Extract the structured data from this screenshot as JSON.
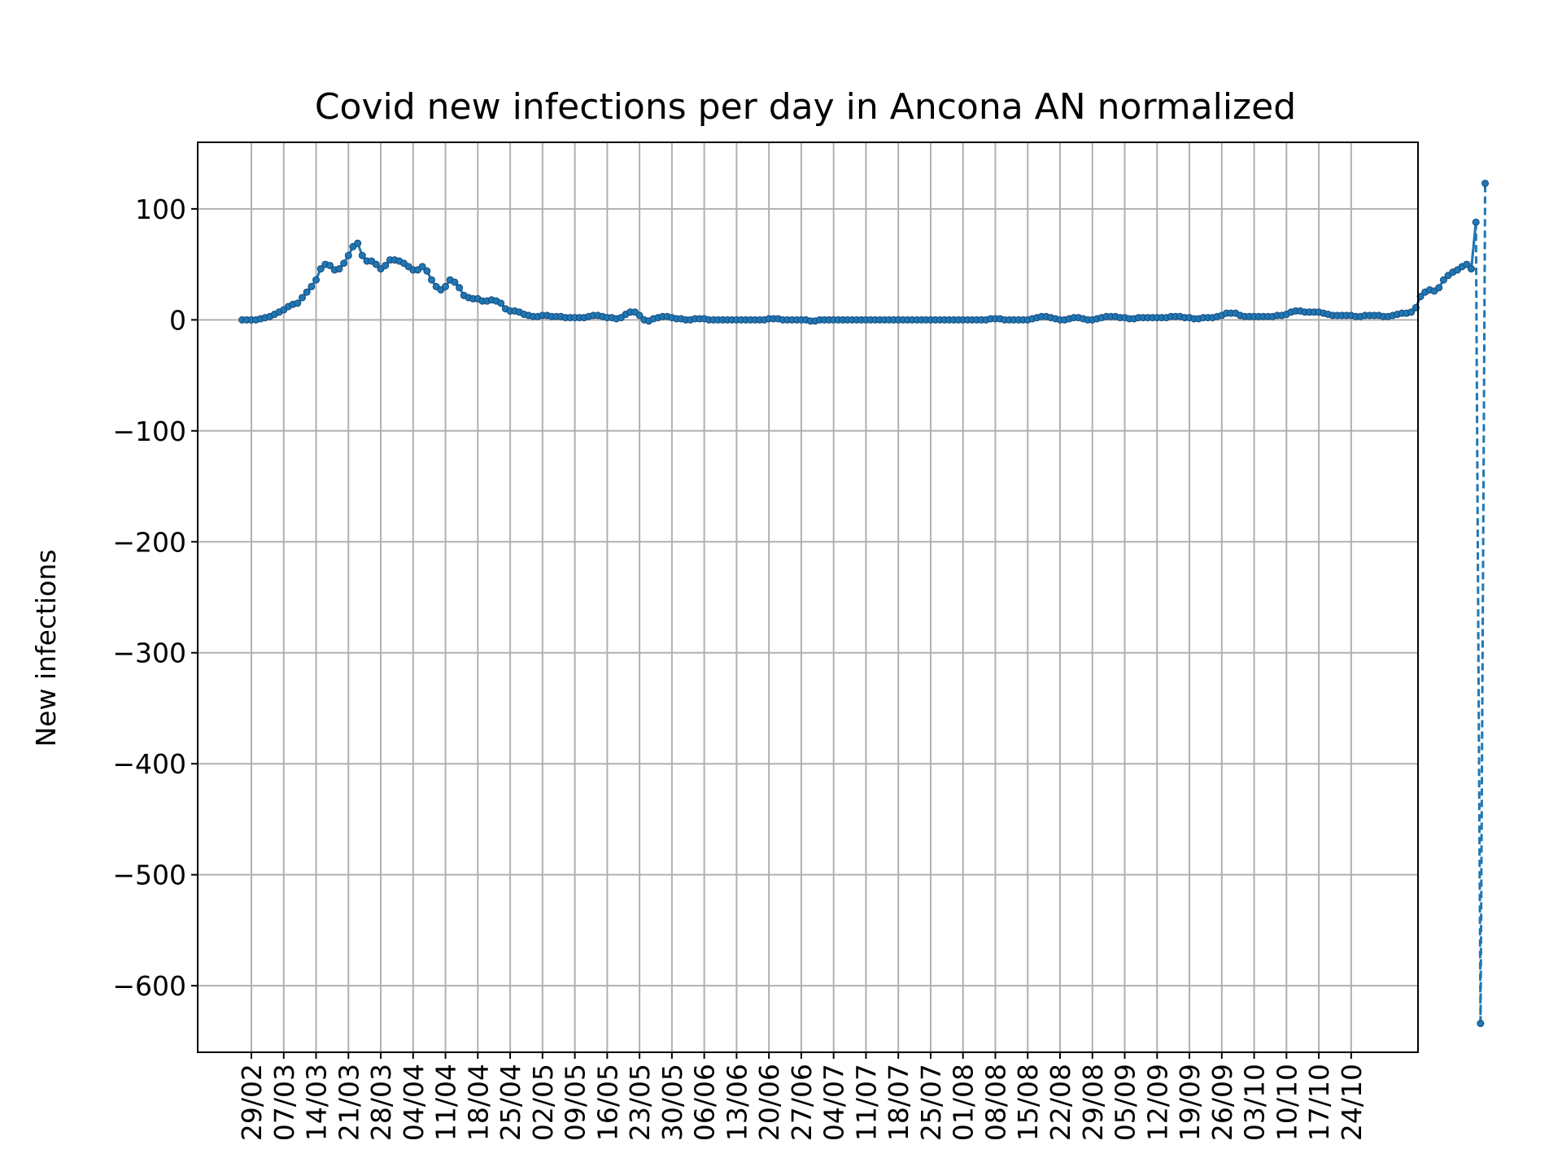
{
  "chart_data": {
    "type": "line",
    "title": "Covid new infections per day in Ancona AN normalized",
    "xlabel": "",
    "ylabel": "New infections",
    "ylim": [
      -660,
      160
    ],
    "yticks": [
      100,
      0,
      -100,
      -200,
      -300,
      -400,
      -500,
      -600
    ],
    "ytick_labels": [
      "100",
      "0",
      "−100",
      "−200",
      "−300",
      "−400",
      "−500",
      "−600"
    ],
    "xticks": [
      "29/02",
      "07/03",
      "14/03",
      "21/03",
      "28/03",
      "04/04",
      "11/04",
      "18/04",
      "25/04",
      "02/05",
      "09/05",
      "16/05",
      "23/05",
      "30/05",
      "06/06",
      "13/06",
      "20/06",
      "27/06",
      "04/07",
      "11/07",
      "18/07",
      "25/07",
      "01/08",
      "08/08",
      "15/08",
      "22/08",
      "29/08",
      "05/09",
      "12/09",
      "19/09",
      "26/09",
      "03/10",
      "10/10",
      "17/10",
      "24/10"
    ],
    "x_start": "27/02",
    "grid": true,
    "color": "#1f77b4",
    "solid_series": [
      0,
      0,
      0,
      0,
      1,
      2,
      3,
      5,
      7,
      9,
      12,
      14,
      15,
      20,
      25,
      30,
      36,
      46,
      50,
      49,
      45,
      46,
      51,
      58,
      66,
      69,
      58,
      53,
      53,
      50,
      46,
      49,
      54,
      54,
      53,
      51,
      48,
      45,
      45,
      48,
      44,
      36,
      30,
      27,
      30,
      36,
      34,
      29,
      22,
      20,
      19,
      19,
      17,
      17,
      18,
      17,
      15,
      10,
      8,
      8,
      7,
      5,
      4,
      3,
      3,
      4,
      4,
      3,
      3,
      3,
      2,
      2,
      2,
      2,
      2,
      3,
      4,
      4,
      3,
      2,
      2,
      1,
      2,
      5,
      7,
      7,
      4,
      0,
      -1,
      1,
      2,
      3,
      3,
      2,
      1,
      1,
      0,
      0,
      1,
      1,
      1,
      0,
      0,
      0,
      0,
      0,
      0,
      0,
      0,
      0,
      0,
      0,
      0,
      0,
      1,
      1,
      1,
      0,
      0,
      0,
      0,
      0,
      0,
      -1,
      -1,
      0,
      0,
      0,
      0,
      0,
      0,
      0,
      0,
      0,
      0,
      0,
      0,
      0,
      0,
      0,
      0,
      0,
      0,
      0,
      0,
      0,
      0,
      0,
      0,
      0,
      0,
      0,
      0,
      0,
      0,
      0,
      0,
      0,
      0,
      0,
      0,
      0,
      1,
      1,
      1,
      0,
      0,
      0,
      0,
      0,
      0,
      1,
      2,
      3,
      3,
      2,
      1,
      0,
      0,
      1,
      2,
      2,
      1,
      0,
      0,
      1,
      2,
      3,
      3,
      3,
      2,
      2,
      1,
      1,
      2,
      2,
      2,
      2,
      2,
      2,
      2,
      3,
      3,
      3,
      2,
      2,
      1,
      1,
      2,
      2,
      2,
      3,
      4,
      6,
      6,
      6,
      4,
      3,
      3,
      3,
      3,
      3,
      3,
      3,
      4,
      4,
      5,
      7,
      8,
      8,
      7,
      7,
      7,
      7,
      6,
      5,
      4,
      4,
      4,
      4,
      4,
      3,
      3,
      4,
      4,
      4,
      4,
      3,
      3,
      4,
      5,
      6,
      6,
      7,
      11,
      21,
      25,
      27,
      26,
      29,
      36,
      40,
      43,
      45,
      48,
      50,
      46,
      88
    ],
    "extra_points": [
      {
        "x": "24/10",
        "y": -634
      },
      {
        "x": "25/10",
        "y": 123
      }
    ]
  }
}
